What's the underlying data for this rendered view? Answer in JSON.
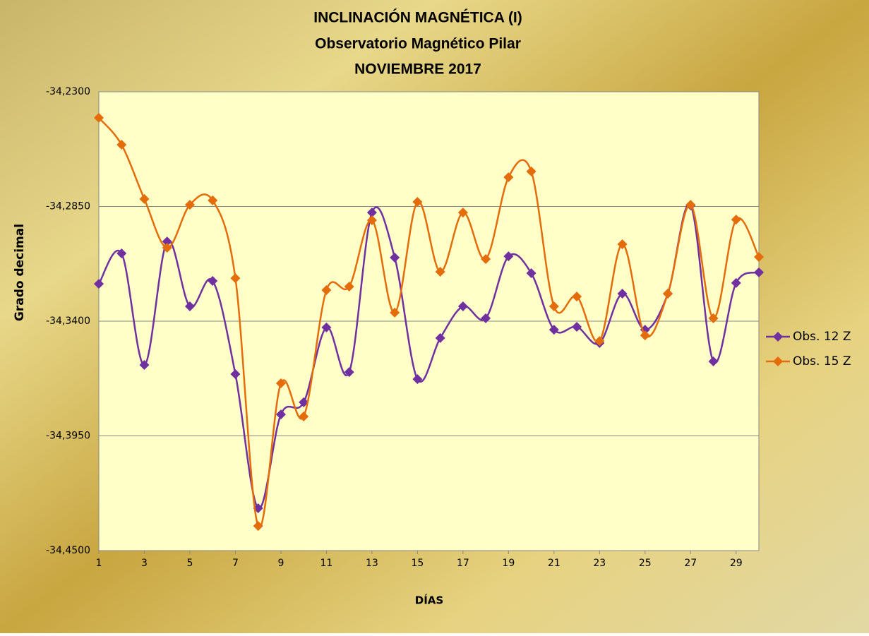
{
  "chart_data": {
    "type": "line",
    "title": [
      "INCLINACIÓN MAGNÉTICA (I)",
      "Observatorio  Magnético Pilar",
      "NOVIEMBRE 2017"
    ],
    "x_label": "DÍAS",
    "y_label": "Grado decimal",
    "x": [
      1,
      2,
      3,
      4,
      5,
      6,
      7,
      8,
      9,
      10,
      11,
      12,
      13,
      14,
      15,
      16,
      17,
      18,
      19,
      20,
      21,
      22,
      23,
      24,
      25,
      26,
      27,
      28,
      29,
      30
    ],
    "xlim": [
      1,
      30
    ],
    "xticks": [
      1,
      3,
      5,
      7,
      9,
      11,
      13,
      15,
      17,
      19,
      21,
      23,
      25,
      27,
      29
    ],
    "ylim": [
      -34.45,
      -34.23
    ],
    "yticks": [
      {
        "value": -34.45,
        "label": "-34,4500"
      },
      {
        "value": -34.395,
        "label": "-34,3950"
      },
      {
        "value": -34.34,
        "label": "-34,3400"
      },
      {
        "value": -34.285,
        "label": "-34,2850"
      },
      {
        "value": -34.23,
        "label": "-34,2300"
      }
    ],
    "grid": true,
    "smooth": true,
    "legend": "right",
    "series": [
      {
        "name": "Obs. 12 Z",
        "color": "#7030a0",
        "values": [
          -34.3221,
          -34.3075,
          -34.361,
          -34.3018,
          -34.3329,
          -34.3207,
          -34.3654,
          -34.4297,
          -34.3847,
          -34.3789,
          -34.343,
          -34.3644,
          -34.2879,
          -34.3095,
          -34.3678,
          -34.3481,
          -34.3329,
          -34.3386,
          -34.3089,
          -34.317,
          -34.3441,
          -34.3427,
          -34.3505,
          -34.3268,
          -34.3441,
          -34.3268,
          -34.2845,
          -34.3593,
          -34.3217,
          -34.3166
        ]
      },
      {
        "name": "Obs. 15 Z",
        "color": "#e46c0a",
        "values": [
          -34.2425,
          -34.2554,
          -34.2814,
          -34.3048,
          -34.2842,
          -34.2821,
          -34.3194,
          -34.4382,
          -34.3698,
          -34.3857,
          -34.3251,
          -34.3234,
          -34.2916,
          -34.3359,
          -34.2828,
          -34.3163,
          -34.2879,
          -34.3102,
          -34.271,
          -34.2682,
          -34.3329,
          -34.3282,
          -34.3495,
          -34.3031,
          -34.3468,
          -34.3268,
          -34.2842,
          -34.3386,
          -34.2913,
          -34.3092
        ]
      }
    ]
  }
}
